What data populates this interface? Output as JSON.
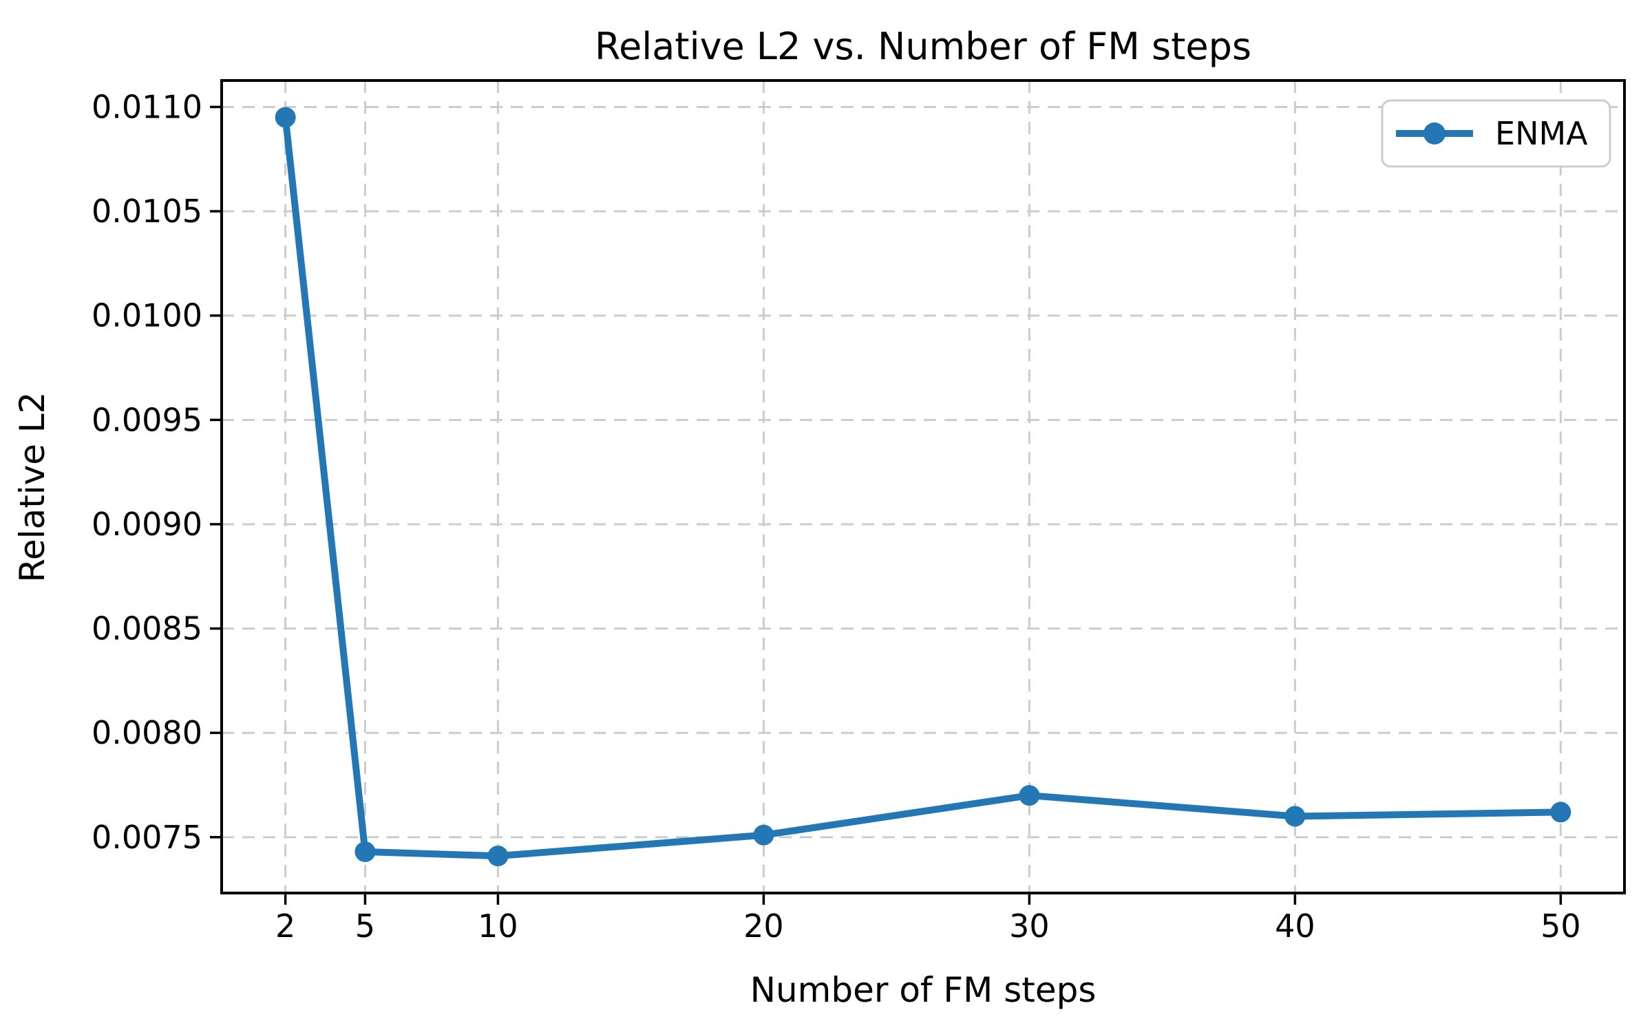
{
  "figure": {
    "background": "#ffffff"
  },
  "chart_data": {
    "type": "line",
    "title": "Relative L2 vs. Number of FM steps",
    "xlabel": "Number of FM steps",
    "ylabel": "Relative L2",
    "series": [
      {
        "name": "ENMA",
        "color": "#2277b4",
        "marker": "circle",
        "x": [
          2,
          5,
          10,
          20,
          30,
          40,
          50
        ],
        "y": [
          0.01095,
          0.00743,
          0.00741,
          0.00751,
          0.0077,
          0.0076,
          0.00762
        ]
      }
    ],
    "xticks": [
      2,
      5,
      10,
      20,
      30,
      40,
      50
    ],
    "xtick_labels": [
      "2",
      "5",
      "10",
      "20",
      "30",
      "40",
      "50"
    ],
    "yticks": [
      0.0075,
      0.008,
      0.0085,
      0.009,
      0.0095,
      0.01,
      0.0105,
      0.011
    ],
    "ytick_labels": [
      "0.0075",
      "0.0080",
      "0.0085",
      "0.0090",
      "0.0095",
      "0.0100",
      "0.0105",
      "0.0110"
    ],
    "xlim": [
      -0.4,
      52.4
    ],
    "ylim": [
      0.0072323,
      0.0111268
    ],
    "grid": true,
    "grid_on": "both",
    "grid_style": "dashed",
    "grid_color": "#cccccc",
    "axis_color": "#000000",
    "background_color": "#ffffff",
    "legend": {
      "position": "upper-right",
      "entries": [
        "ENMA"
      ]
    }
  }
}
